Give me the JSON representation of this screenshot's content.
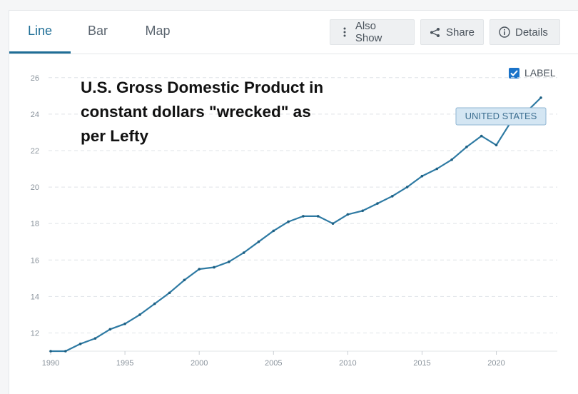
{
  "tabs": {
    "line": "Line",
    "bar": "Bar",
    "map": "Map"
  },
  "toolbar": {
    "also_show": "Also Show",
    "share": "Share",
    "details": "Details"
  },
  "label_toggle": {
    "label": "LABEL",
    "checked": true
  },
  "colors": {
    "accent": "#1f6e96",
    "line": "#2e7aa3",
    "checkbox": "#1a73c9"
  },
  "chart_data": {
    "type": "line",
    "title": "U.S. Gross Domestic Product in constant dollars \"wrecked\" as per Lefty",
    "title_lines": [
      "U.S. Gross Domestic Product in",
      "constant dollars \"wrecked\" as",
      "per Lefty"
    ],
    "xlabel": "",
    "ylabel": "",
    "xlim": [
      1990,
      2023
    ],
    "ylim": [
      11,
      26.5
    ],
    "x_ticks": [
      1990,
      1995,
      2000,
      2005,
      2010,
      2015,
      2020
    ],
    "y_ticks": [
      12,
      14,
      16,
      18,
      20,
      22,
      24,
      26
    ],
    "grid": true,
    "series": [
      {
        "name": "UNITED STATES",
        "x": [
          1990,
          1991,
          1992,
          1993,
          1994,
          1995,
          1996,
          1997,
          1998,
          1999,
          2000,
          2001,
          2002,
          2003,
          2004,
          2005,
          2006,
          2007,
          2008,
          2009,
          2010,
          2011,
          2012,
          2013,
          2014,
          2015,
          2016,
          2017,
          2018,
          2019,
          2020,
          2021,
          2022,
          2023
        ],
        "values": [
          11.0,
          11.0,
          11.4,
          11.7,
          12.2,
          12.5,
          13.0,
          13.6,
          14.2,
          14.9,
          15.5,
          15.6,
          15.9,
          16.4,
          17.0,
          17.6,
          18.1,
          18.4,
          18.4,
          18.0,
          18.5,
          18.7,
          19.1,
          19.5,
          20.0,
          20.6,
          21.0,
          21.5,
          22.2,
          22.8,
          22.3,
          23.6,
          24.1,
          24.9
        ]
      }
    ]
  }
}
